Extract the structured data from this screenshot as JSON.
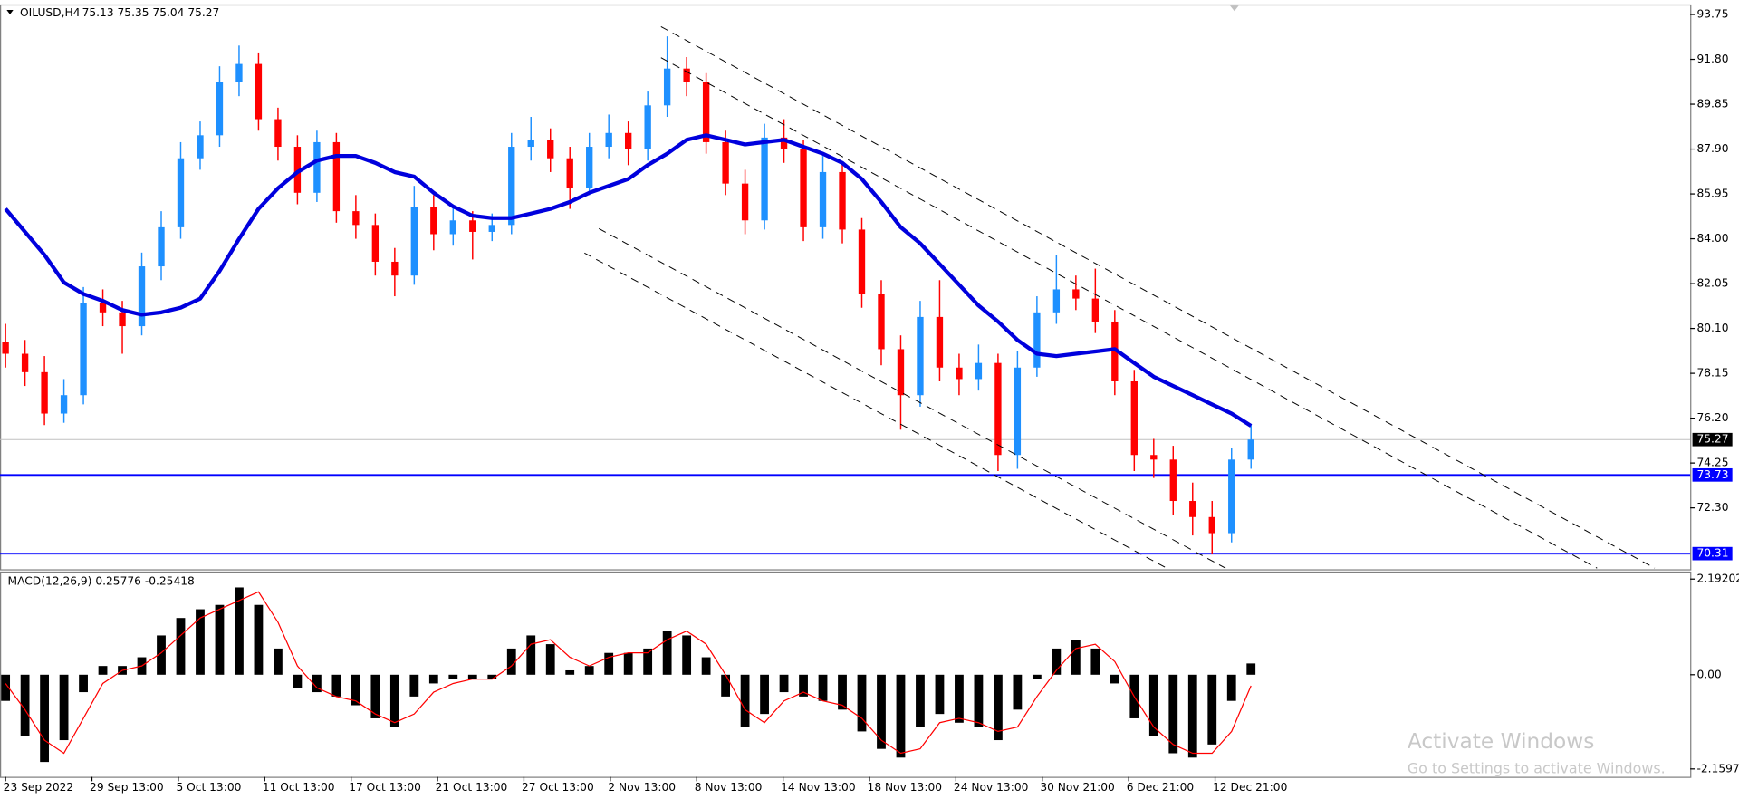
{
  "header": {
    "symbol": "OILUSD,H4",
    "ohlc": "75.13 75.35 75.04 75.27"
  },
  "watermark": {
    "title": "Activate Windows",
    "subtitle": "Go to Settings to activate Windows."
  },
  "x_labels": [
    "23 Sep 2022",
    "29 Sep 13:00",
    "5 Oct 13:00",
    "11 Oct 13:00",
    "17 Oct 13:00",
    "21 Oct 13:00",
    "27 Oct 13:00",
    "2 Nov 13:00",
    "8 Nov 13:00",
    "14 Nov 13:00",
    "18 Nov 13:00",
    "24 Nov 13:00",
    "30 Nov 21:00",
    "6 Dec 21:00",
    "12 Dec 21:00"
  ],
  "chart_data": [
    {
      "type": "candlestick",
      "up_color": "#1e90ff",
      "down_color": "#ff0000",
      "open": [
        79.5,
        79.0,
        78.2,
        76.4,
        77.2,
        81.2,
        80.8,
        80.2,
        82.8,
        84.5,
        87.5,
        88.5,
        90.8,
        91.6,
        89.2,
        88.0,
        86.0,
        88.2,
        85.2,
        84.6,
        83.0,
        82.4,
        85.4,
        84.2,
        84.8,
        84.3,
        84.6,
        88.0,
        88.3,
        87.5,
        86.2,
        88.0,
        88.6,
        87.9,
        89.8,
        91.4,
        90.8,
        88.2,
        86.4,
        84.8,
        88.4,
        87.9,
        84.5,
        86.9,
        84.4,
        81.6,
        79.2,
        77.2,
        80.6,
        78.4,
        77.9,
        78.6,
        74.6,
        78.4,
        80.8,
        81.8,
        81.4,
        80.4,
        77.8,
        74.6,
        74.4,
        72.6,
        71.9,
        71.2,
        74.4
      ],
      "high": [
        80.3,
        79.6,
        78.9,
        77.9,
        81.9,
        81.8,
        81.3,
        83.4,
        85.2,
        88.2,
        89.1,
        91.5,
        92.4,
        92.1,
        89.7,
        88.5,
        88.7,
        88.6,
        85.9,
        85.1,
        83.6,
        86.3,
        85.9,
        85.5,
        85.2,
        85.1,
        88.6,
        89.3,
        88.8,
        88.0,
        88.6,
        89.4,
        89.1,
        90.4,
        92.8,
        91.9,
        91.2,
        88.7,
        87.0,
        89.0,
        89.2,
        88.3,
        87.6,
        87.3,
        84.9,
        82.2,
        79.8,
        81.3,
        82.2,
        79.0,
        79.4,
        79.0,
        79.1,
        81.5,
        83.3,
        82.4,
        82.7,
        80.9,
        78.3,
        75.3,
        75.0,
        73.4,
        72.6,
        74.9,
        75.9
      ],
      "low": [
        78.4,
        77.6,
        75.9,
        76.0,
        76.8,
        80.2,
        79.0,
        79.8,
        82.2,
        84.0,
        87.0,
        88.0,
        90.2,
        88.7,
        87.4,
        85.5,
        85.6,
        84.7,
        84.0,
        82.4,
        81.5,
        82.0,
        83.5,
        83.7,
        83.1,
        83.9,
        84.2,
        87.4,
        86.9,
        85.3,
        85.9,
        87.5,
        87.2,
        87.4,
        89.3,
        90.2,
        87.7,
        85.9,
        84.2,
        84.4,
        87.3,
        83.9,
        84.0,
        83.8,
        81.0,
        78.5,
        75.7,
        76.7,
        77.8,
        77.2,
        77.4,
        73.9,
        74.0,
        78.0,
        80.3,
        80.9,
        79.9,
        77.2,
        73.9,
        73.6,
        72.0,
        71.1,
        70.31,
        70.8,
        74.0
      ],
      "close": [
        79.0,
        78.2,
        76.4,
        77.2,
        81.2,
        80.8,
        80.2,
        82.8,
        84.5,
        87.5,
        88.5,
        90.8,
        91.6,
        89.2,
        88.0,
        86.0,
        88.2,
        85.2,
        84.6,
        83.0,
        82.4,
        85.4,
        84.2,
        84.8,
        84.3,
        84.6,
        88.0,
        88.3,
        87.5,
        86.2,
        88.0,
        88.6,
        87.9,
        89.8,
        91.4,
        90.8,
        88.2,
        86.4,
        84.8,
        88.4,
        87.9,
        84.5,
        86.9,
        84.4,
        81.6,
        79.2,
        77.2,
        80.6,
        78.4,
        77.9,
        78.6,
        74.6,
        78.4,
        80.8,
        81.8,
        81.4,
        80.4,
        77.8,
        74.6,
        74.4,
        72.6,
        71.9,
        71.2,
        74.4,
        75.27
      ],
      "ma": {
        "color": "#0000dd",
        "values": [
          85.3,
          84.3,
          83.3,
          82.1,
          81.6,
          81.3,
          80.9,
          80.7,
          80.8,
          81.0,
          81.4,
          82.6,
          84.0,
          85.3,
          86.2,
          86.9,
          87.4,
          87.6,
          87.6,
          87.3,
          86.9,
          86.7,
          86.0,
          85.4,
          85.0,
          84.9,
          84.9,
          85.1,
          85.3,
          85.6,
          86.0,
          86.3,
          86.6,
          87.2,
          87.7,
          88.3,
          88.5,
          88.3,
          88.1,
          88.2,
          88.3,
          88.0,
          87.7,
          87.3,
          86.6,
          85.6,
          84.5,
          83.8,
          82.9,
          82.0,
          81.1,
          80.4,
          79.6,
          79.0,
          78.9,
          79.0,
          79.1,
          79.2,
          78.6,
          78.0,
          77.6,
          77.2,
          76.8,
          76.4,
          75.87
        ]
      },
      "levels": [
        {
          "value": 73.73,
          "color": "#0000ff"
        },
        {
          "value": 70.31,
          "color": "#0000ff"
        }
      ],
      "last_price": 75.27,
      "ylim": [
        69.63,
        94.14
      ],
      "yticks": [
        93.75,
        {
          "value": 91.8,
          "label": "91.80"
        },
        89.85,
        {
          "value": 87.9,
          "label": "87.90"
        },
        85.95,
        {
          "value": 84.0,
          "label": "84.00"
        },
        82.05,
        {
          "value": 80.1,
          "label": "80.10"
        },
        78.15,
        {
          "value": 76.2,
          "label": "76.20"
        },
        74.25,
        {
          "value": 72.3,
          "label": "72.30"
        }
      ]
    },
    {
      "type": "macd",
      "label": "MACD(12,26,9) 0.25776 -0.25418",
      "histogram": {
        "color": "#000000",
        "values": [
          -0.6,
          -1.4,
          -2.0,
          -1.5,
          -0.4,
          0.2,
          0.2,
          0.4,
          0.9,
          1.3,
          1.5,
          1.6,
          2.0,
          1.6,
          0.6,
          -0.3,
          -0.4,
          -0.5,
          -0.7,
          -1.0,
          -1.2,
          -0.5,
          -0.2,
          -0.1,
          -0.1,
          -0.1,
          0.6,
          0.9,
          0.7,
          0.1,
          0.2,
          0.5,
          0.5,
          0.6,
          1.0,
          0.9,
          0.4,
          -0.5,
          -1.2,
          -0.9,
          -0.4,
          -0.5,
          -0.6,
          -0.8,
          -1.3,
          -1.7,
          -1.9,
          -1.2,
          -0.9,
          -1.1,
          -1.2,
          -1.5,
          -0.8,
          -0.1,
          0.6,
          0.8,
          0.6,
          -0.2,
          -1.0,
          -1.4,
          -1.8,
          -1.9,
          -1.6,
          -0.6,
          0.25776
        ]
      },
      "signal": {
        "color": "#ff0000",
        "values": [
          -0.2,
          -0.8,
          -1.5,
          -1.8,
          -1.0,
          -0.2,
          0.1,
          0.2,
          0.5,
          0.9,
          1.3,
          1.5,
          1.7,
          1.9,
          1.2,
          0.2,
          -0.3,
          -0.5,
          -0.6,
          -0.9,
          -1.1,
          -0.9,
          -0.4,
          -0.2,
          -0.1,
          -0.1,
          0.2,
          0.7,
          0.8,
          0.4,
          0.2,
          0.4,
          0.5,
          0.5,
          0.8,
          1.0,
          0.7,
          0.0,
          -0.8,
          -1.1,
          -0.6,
          -0.4,
          -0.6,
          -0.7,
          -1.0,
          -1.5,
          -1.8,
          -1.7,
          -1.1,
          -1.0,
          -1.1,
          -1.3,
          -1.2,
          -0.5,
          0.1,
          0.6,
          0.7,
          0.3,
          -0.5,
          -1.2,
          -1.6,
          -1.8,
          -1.8,
          -1.3,
          -0.25418
        ]
      },
      "ylim": [
        -2.34,
        2.34
      ],
      "yticks": [
        2.19202,
        {
          "value": 0,
          "label": "0.00"
        },
        -2.15977
      ]
    }
  ]
}
